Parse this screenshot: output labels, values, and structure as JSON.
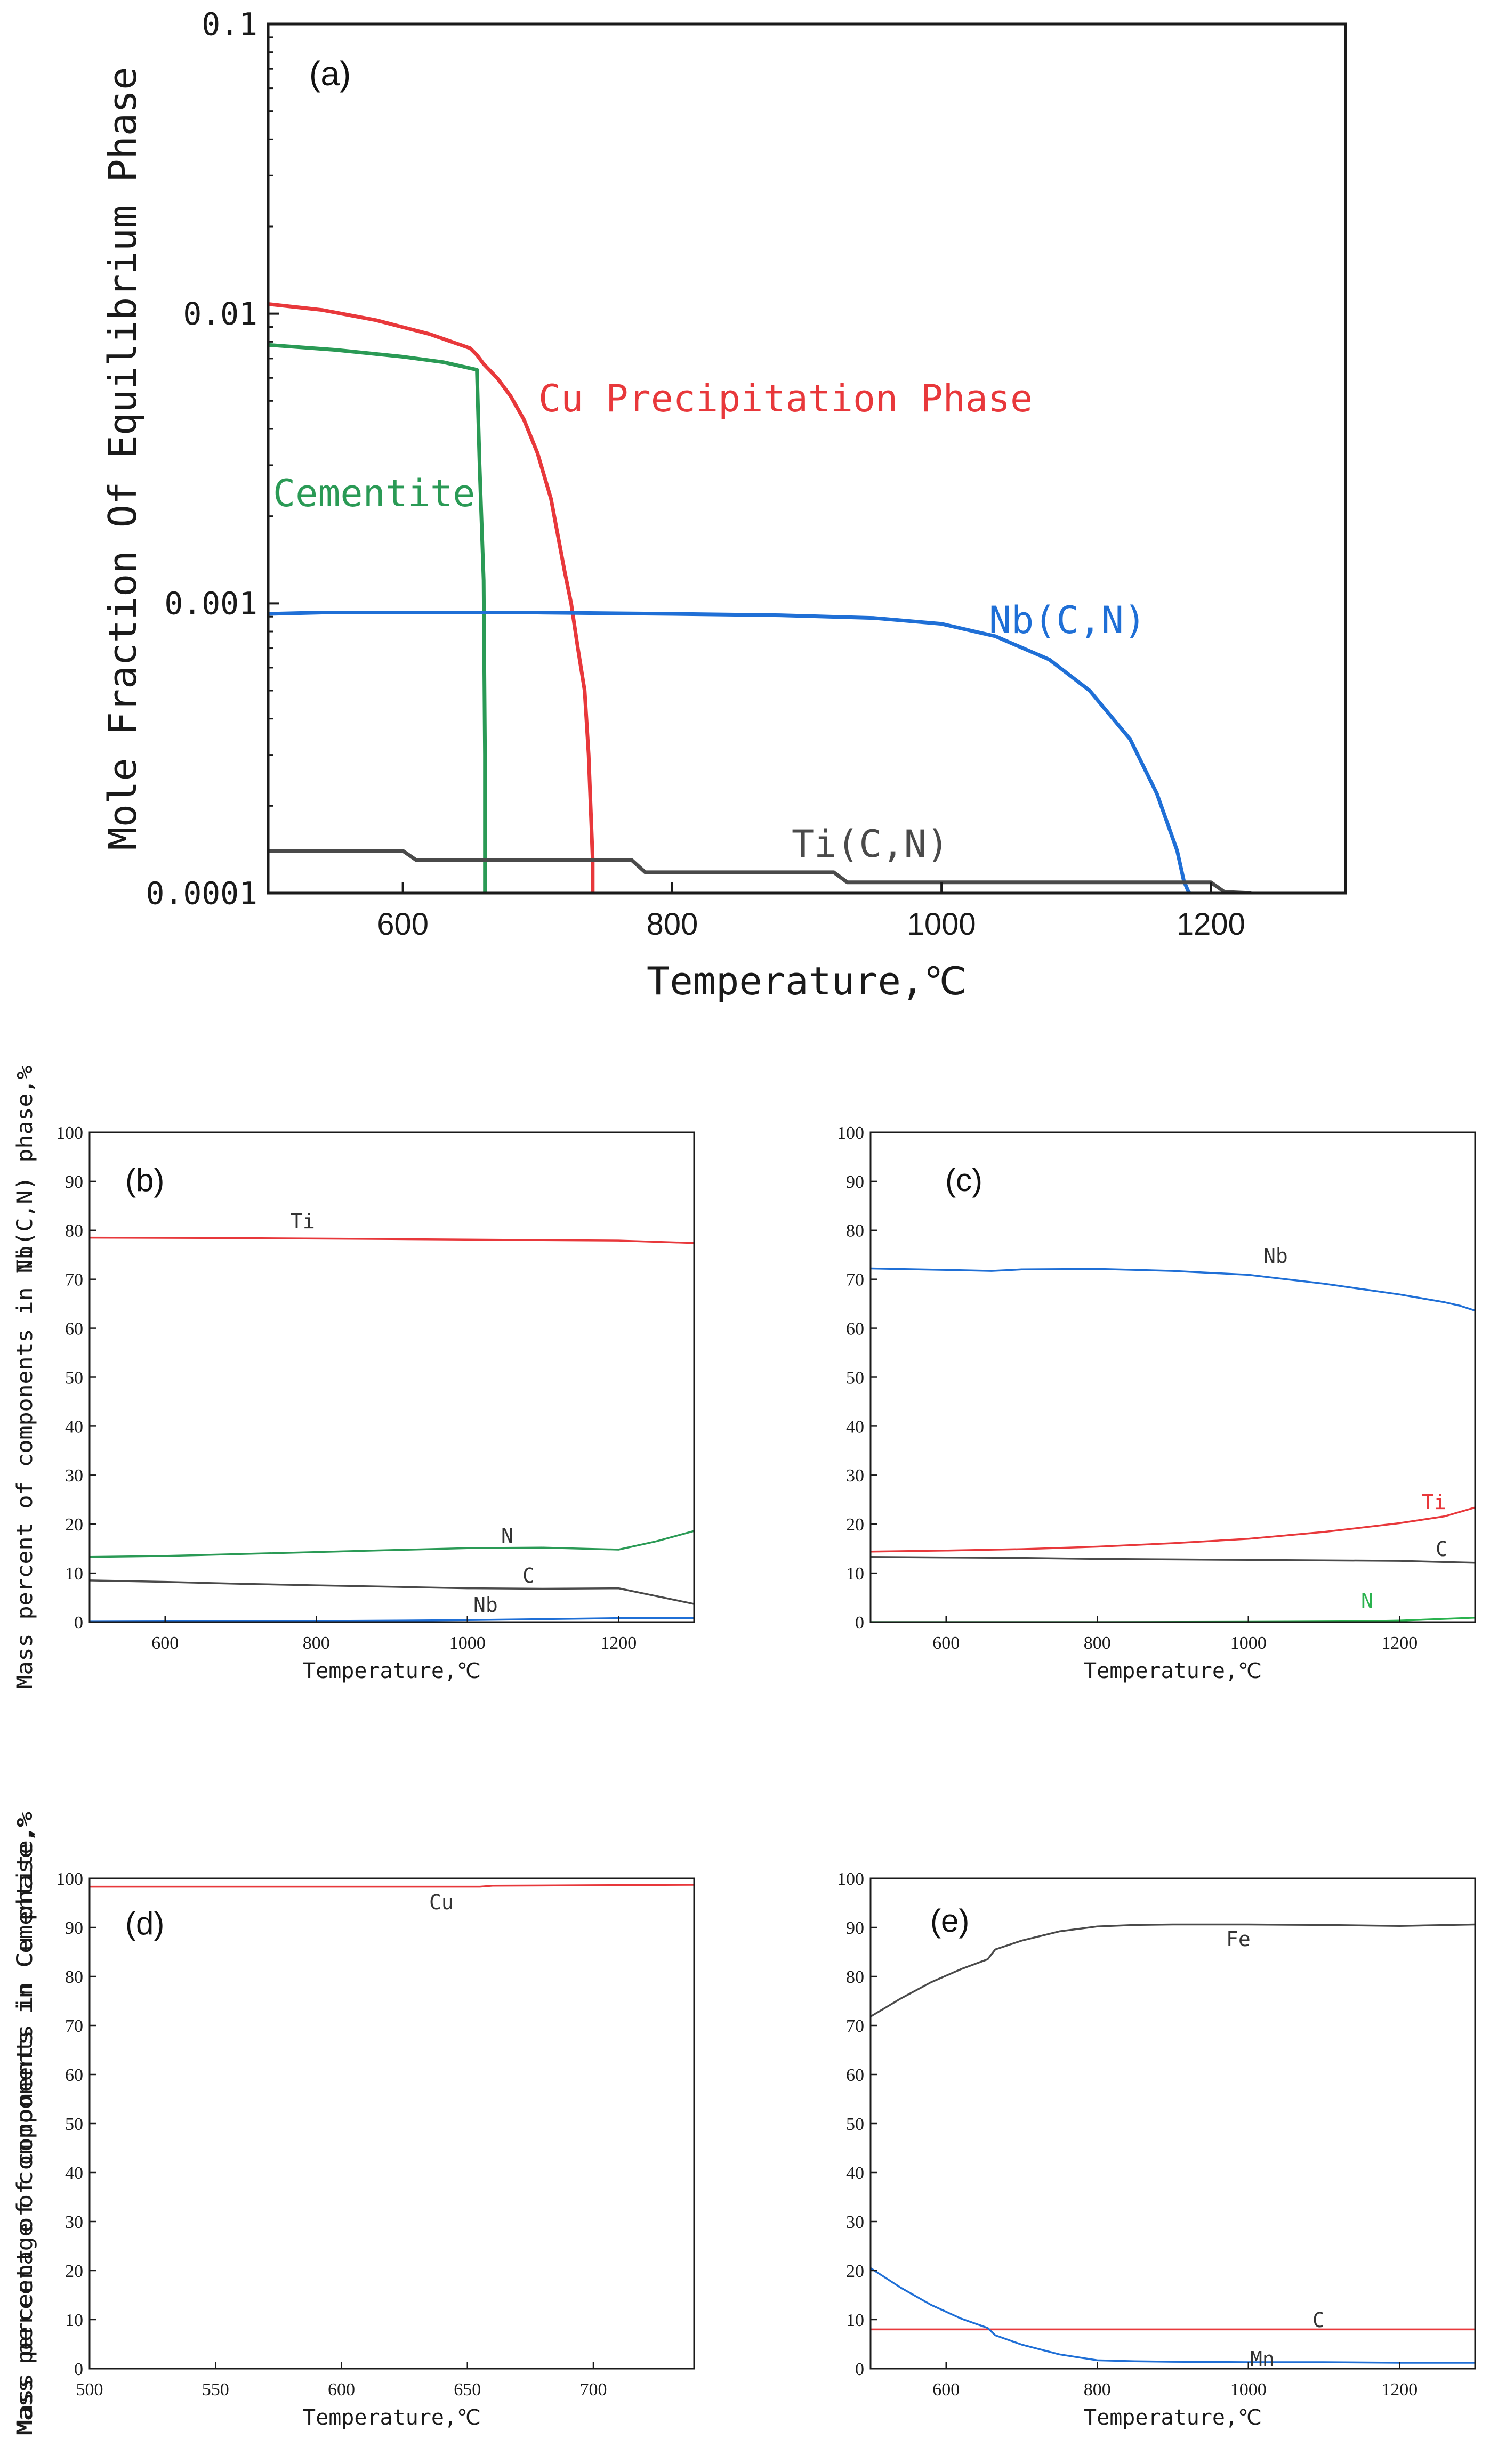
{
  "figure": "Equilibrium phase calculation panels",
  "chart_data": [
    {
      "id": "a",
      "type": "line",
      "panel_label": "(a)",
      "xlabel": "Temperature,℃",
      "ylabel": "Mole Fraction Of Equilibrium Phase",
      "xlim": [
        500,
        1300
      ],
      "ylim": [
        0.0001,
        0.1
      ],
      "yscale": "log",
      "xticks": [
        600,
        800,
        1000,
        1200
      ],
      "xtick_labels": [
        "600",
        "800",
        "1000",
        "1200"
      ],
      "yticks": [
        0.0001,
        0.001,
        0.01,
        0.1
      ],
      "ytick_labels": [
        "0.0001",
        "0.001",
        "0.01",
        "0.1"
      ],
      "series": [
        {
          "name": "Cu Precipitation Phase",
          "color": "#e8383b",
          "x": [
            500,
            540,
            580,
            620,
            650,
            655,
            660,
            670,
            680,
            690,
            700,
            710,
            720,
            725,
            730,
            735,
            738,
            741,
            741
          ],
          "y": [
            0.0108,
            0.0103,
            0.0095,
            0.0085,
            0.0076,
            0.0072,
            0.0067,
            0.006,
            0.0052,
            0.0043,
            0.0033,
            0.0023,
            0.0013,
            0.001,
            0.0007,
            0.0005,
            0.0003,
            0.00013,
            0.0001
          ]
        },
        {
          "name": "Cementite",
          "color": "#2a9a55",
          "x": [
            500,
            550,
            600,
            630,
            655,
            657,
            660,
            661,
            661
          ],
          "y": [
            0.0078,
            0.0075,
            0.0071,
            0.0068,
            0.0064,
            0.003,
            0.0012,
            0.0003,
            0.0001
          ]
        },
        {
          "name": "Nb(C,N)",
          "color": "#1f6fd6",
          "x": [
            500,
            540,
            600,
            700,
            800,
            880,
            950,
            1000,
            1040,
            1080,
            1110,
            1140,
            1160,
            1175,
            1180,
            1183,
            1184
          ],
          "y": [
            0.00092,
            0.00093,
            0.00093,
            0.00093,
            0.00092,
            0.00091,
            0.00089,
            0.00085,
            0.00077,
            0.00064,
            0.0005,
            0.00034,
            0.00022,
            0.00014,
            0.00011,
            0.000102,
            0.0001
          ]
        },
        {
          "name": "Ti(C,N)",
          "color": "#4a4a4a",
          "x": [
            500,
            600,
            610,
            770,
            780,
            920,
            930,
            1200,
            1210,
            1230
          ],
          "y": [
            0.00014,
            0.00014,
            0.00013,
            0.00013,
            0.000118,
            0.000118,
            0.000109,
            0.000109,
            0.000101,
            0.0001
          ]
        }
      ]
    },
    {
      "id": "b",
      "type": "line",
      "panel_label": "(b)",
      "xlabel": "Temperature,℃",
      "ylabel": "Mass percent of components in Ti(C,N) phase,%",
      "xlim": [
        500,
        1300
      ],
      "ylim": [
        0,
        100
      ],
      "xticks": [
        600,
        800,
        1000,
        1200
      ],
      "xtick_labels": [
        "600",
        "800",
        "1000",
        "1200"
      ],
      "yticks": [
        0,
        10,
        20,
        30,
        40,
        50,
        60,
        70,
        80,
        90,
        100
      ],
      "ytick_labels": [
        "0",
        "10",
        "20",
        "30",
        "40",
        "50",
        "60",
        "70",
        "80",
        "90",
        "100"
      ],
      "series": [
        {
          "name": "Ti",
          "color": "#e8383b",
          "x": [
            500,
            700,
            900,
            1100,
            1200,
            1300
          ],
          "y": [
            78.5,
            78.4,
            78.2,
            78.0,
            77.9,
            77.4
          ]
        },
        {
          "name": "N",
          "color": "#2a9a55",
          "x": [
            500,
            600,
            700,
            800,
            900,
            1000,
            1100,
            1200,
            1250,
            1300
          ],
          "y": [
            13.3,
            13.5,
            13.9,
            14.3,
            14.7,
            15.1,
            15.2,
            14.8,
            16.5,
            18.6
          ]
        },
        {
          "name": "C",
          "color": "#4a4a4a",
          "x": [
            500,
            600,
            700,
            800,
            900,
            1000,
            1100,
            1200,
            1250,
            1300
          ],
          "y": [
            8.5,
            8.2,
            7.8,
            7.5,
            7.2,
            6.9,
            6.8,
            6.9,
            5.3,
            3.7
          ]
        },
        {
          "name": "Nb",
          "color": "#1f6fd6",
          "x": [
            500,
            800,
            1000,
            1100,
            1200,
            1300
          ],
          "y": [
            0.1,
            0.2,
            0.4,
            0.6,
            0.8,
            0.8
          ]
        }
      ]
    },
    {
      "id": "c",
      "type": "line",
      "panel_label": "(c)",
      "xlabel": "Temperature,℃",
      "ylabel": "Mass percent of components in Nb(C,N) phase,%",
      "xlim": [
        500,
        1300
      ],
      "ylim": [
        0,
        100
      ],
      "xticks": [
        600,
        800,
        1000,
        1200
      ],
      "xtick_labels": [
        "600",
        "800",
        "1000",
        "1200"
      ],
      "yticks": [
        0,
        10,
        20,
        30,
        40,
        50,
        60,
        70,
        80,
        90,
        100
      ],
      "ytick_labels": [
        "0",
        "10",
        "20",
        "30",
        "40",
        "50",
        "60",
        "70",
        "80",
        "90",
        "100"
      ],
      "series": [
        {
          "name": "Nb",
          "color": "#1f6fd6",
          "x": [
            500,
            600,
            660,
            700,
            800,
            900,
            1000,
            1100,
            1200,
            1260,
            1280,
            1300
          ],
          "y": [
            72.2,
            71.9,
            71.7,
            72.0,
            72.1,
            71.7,
            70.9,
            69.1,
            66.9,
            65.3,
            64.6,
            63.6
          ]
        },
        {
          "name": "Ti",
          "color": "#e8383b",
          "x": [
            500,
            600,
            700,
            800,
            900,
            1000,
            1100,
            1200,
            1260,
            1300
          ],
          "y": [
            14.4,
            14.6,
            14.9,
            15.4,
            16.1,
            17.0,
            18.4,
            20.2,
            21.6,
            23.4
          ]
        },
        {
          "name": "C",
          "color": "#4a4a4a",
          "x": [
            500,
            600,
            700,
            800,
            900,
            1000,
            1100,
            1200,
            1300
          ],
          "y": [
            13.3,
            13.2,
            13.1,
            12.9,
            12.8,
            12.7,
            12.6,
            12.5,
            12.1
          ]
        },
        {
          "name": "N",
          "color": "#2ab24e",
          "x": [
            500,
            800,
            1000,
            1150,
            1200,
            1250,
            1300
          ],
          "y": [
            0,
            0,
            0.05,
            0.15,
            0.3,
            0.6,
            0.9
          ]
        }
      ]
    },
    {
      "id": "d",
      "type": "line",
      "panel_label": "(d)",
      "xlabel": "Temperature,℃",
      "ylabel": "Mass percent of components in Cu phase,%",
      "xlim": [
        500,
        740
      ],
      "ylim": [
        0,
        100
      ],
      "xticks": [
        500,
        550,
        600,
        650,
        700
      ],
      "xtick_labels": [
        "500",
        "550",
        "600",
        "650",
        "700"
      ],
      "yticks": [
        0,
        10,
        20,
        30,
        40,
        50,
        60,
        70,
        80,
        90,
        100
      ],
      "ytick_labels": [
        "0",
        "10",
        "20",
        "30",
        "40",
        "50",
        "60",
        "70",
        "80",
        "90",
        "100"
      ],
      "series": [
        {
          "name": "Cu",
          "color": "#e8383b",
          "x": [
            500,
            600,
            655,
            660,
            700,
            740
          ],
          "y": [
            98.3,
            98.3,
            98.3,
            98.5,
            98.6,
            98.7
          ]
        }
      ]
    },
    {
      "id": "e",
      "type": "line",
      "panel_label": "(e)",
      "xlabel": "Temperature,℃",
      "ylabel": "Mass percentage of components in Cementite,%",
      "xlim": [
        500,
        1300
      ],
      "ylim": [
        0,
        100
      ],
      "xticks": [
        600,
        800,
        1000,
        1200
      ],
      "xtick_labels": [
        "600",
        "800",
        "1000",
        "1200"
      ],
      "yticks": [
        0,
        10,
        20,
        30,
        40,
        50,
        60,
        70,
        80,
        90,
        100
      ],
      "ytick_labels": [
        "0",
        "10",
        "20",
        "30",
        "40",
        "50",
        "60",
        "70",
        "80",
        "90",
        "100"
      ],
      "series": [
        {
          "name": "Fe",
          "color": "#4a4a4a",
          "x": [
            500,
            540,
            580,
            620,
            655,
            665,
            700,
            750,
            800,
            850,
            900,
            1000,
            1100,
            1200,
            1300
          ],
          "y": [
            71.8,
            75.5,
            78.8,
            81.5,
            83.5,
            85.5,
            87.3,
            89.2,
            90.2,
            90.5,
            90.6,
            90.6,
            90.5,
            90.3,
            90.6
          ]
        },
        {
          "name": "C",
          "color": "#e8383b",
          "x": [
            500,
            1300
          ],
          "y": [
            8.0,
            8.0
          ]
        },
        {
          "name": "Mn",
          "color": "#1f6fd6",
          "x": [
            500,
            540,
            580,
            620,
            655,
            665,
            700,
            750,
            800,
            850,
            900,
            1000,
            1100,
            1200,
            1300
          ],
          "y": [
            20.5,
            16.5,
            13.0,
            10.2,
            8.3,
            6.8,
            4.9,
            2.9,
            1.7,
            1.5,
            1.4,
            1.3,
            1.3,
            1.2,
            1.2
          ]
        }
      ]
    }
  ]
}
